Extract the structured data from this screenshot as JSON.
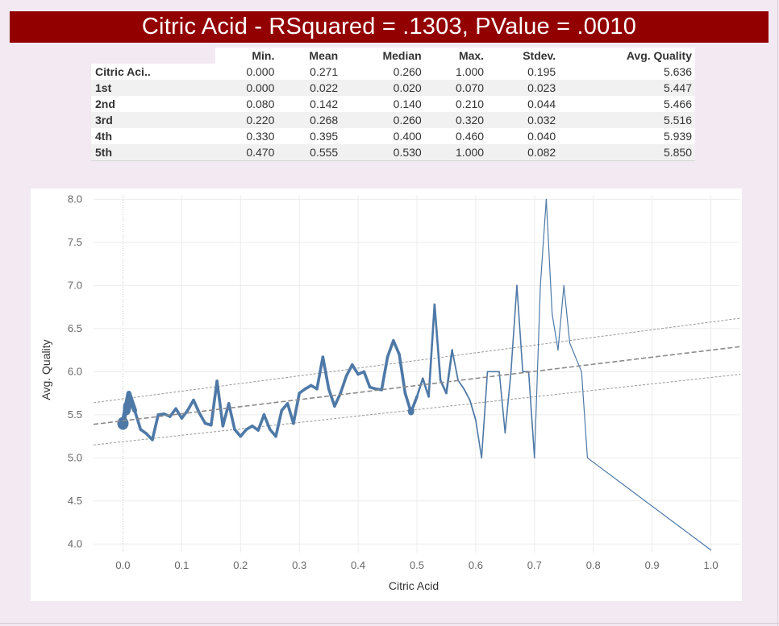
{
  "title": "Citric Acid - RSquared = .1303, PValue = .0010",
  "stats_table": {
    "columns": [
      "Min.",
      "Mean",
      "Median",
      "Max.",
      "Stdev.",
      "Avg. Quality"
    ],
    "rows": [
      {
        "label": "Citric Aci..",
        "values": [
          "0.000",
          "0.271",
          "0.260",
          "1.000",
          "0.195",
          "5.636"
        ]
      },
      {
        "label": "1st",
        "values": [
          "0.000",
          "0.022",
          "0.020",
          "0.070",
          "0.023",
          "5.447"
        ]
      },
      {
        "label": "2nd",
        "values": [
          "0.080",
          "0.142",
          "0.140",
          "0.210",
          "0.044",
          "5.466"
        ]
      },
      {
        "label": "3rd",
        "values": [
          "0.220",
          "0.268",
          "0.260",
          "0.320",
          "0.032",
          "5.516"
        ]
      },
      {
        "label": "4th",
        "values": [
          "0.330",
          "0.395",
          "0.400",
          "0.460",
          "0.040",
          "5.939"
        ]
      },
      {
        "label": "5th",
        "values": [
          "0.470",
          "0.555",
          "0.530",
          "1.000",
          "0.082",
          "5.850"
        ]
      }
    ]
  },
  "chart_data": {
    "type": "line",
    "title": "",
    "xlabel": "Citric Acid",
    "ylabel": "Avg. Quality",
    "xlim": [
      -0.05,
      1.05
    ],
    "ylim": [
      3.9,
      8.05
    ],
    "x_ticks": [
      "0.0",
      "0.1",
      "0.2",
      "0.3",
      "0.4",
      "0.5",
      "0.6",
      "0.7",
      "0.8",
      "0.9",
      "1.0"
    ],
    "y_ticks": [
      "4.0",
      "4.5",
      "5.0",
      "5.5",
      "6.0",
      "6.5",
      "7.0",
      "7.5",
      "8.0"
    ],
    "grid": true,
    "line_color": "#4e79a7",
    "trend_color": "#8a8a8a",
    "series": [
      {
        "x": [
          0.0,
          0.01,
          0.02,
          0.03,
          0.04,
          0.05,
          0.06,
          0.07,
          0.08,
          0.09,
          0.1,
          0.11,
          0.12,
          0.13,
          0.14,
          0.15,
          0.16,
          0.17,
          0.18,
          0.19,
          0.2,
          0.21,
          0.22,
          0.23,
          0.24,
          0.25,
          0.26,
          0.27,
          0.28,
          0.29,
          0.3,
          0.31,
          0.32,
          0.33,
          0.34,
          0.35,
          0.36,
          0.37,
          0.38,
          0.39,
          0.4,
          0.41,
          0.42,
          0.43,
          0.44,
          0.45,
          0.46,
          0.47,
          0.48,
          0.49,
          0.5,
          0.51,
          0.52,
          0.53,
          0.54,
          0.55,
          0.56,
          0.57,
          0.58,
          0.59,
          0.6,
          0.61,
          0.62,
          0.63,
          0.64,
          0.65,
          0.66,
          0.67,
          0.68,
          0.69,
          0.7,
          0.71,
          0.72,
          0.73,
          0.74,
          0.75,
          0.76,
          0.78,
          0.79,
          1.0
        ],
        "y": [
          5.4,
          5.75,
          5.55,
          5.33,
          5.28,
          5.21,
          5.5,
          5.51,
          5.48,
          5.57,
          5.46,
          5.55,
          5.67,
          5.52,
          5.4,
          5.38,
          5.89,
          5.37,
          5.63,
          5.33,
          5.25,
          5.33,
          5.37,
          5.32,
          5.5,
          5.33,
          5.25,
          5.55,
          5.63,
          5.4,
          5.75,
          5.8,
          5.84,
          5.8,
          6.17,
          5.8,
          5.6,
          5.75,
          5.95,
          6.08,
          5.97,
          6.0,
          5.82,
          5.8,
          5.79,
          6.17,
          6.36,
          6.2,
          5.75,
          5.53,
          5.71,
          5.92,
          5.71,
          6.78,
          5.9,
          5.75,
          6.25,
          5.9,
          5.8,
          5.67,
          5.44,
          5.0,
          6.0,
          6.0,
          6.0,
          5.29,
          6.0,
          7.0,
          6.0,
          6.0,
          5.0,
          7.0,
          8.0,
          6.67,
          6.25,
          7.0,
          6.33,
          6.0,
          5.0,
          3.93
        ]
      }
    ],
    "trend_line": {
      "intercept": 5.43,
      "slope": 0.82
    },
    "confidence_band": {
      "upper": [
        [
          -0.05,
          5.64
        ],
        [
          1.05,
          6.62
        ]
      ],
      "lower": [
        [
          -0.05,
          5.15
        ],
        [
          1.05,
          5.97
        ]
      ]
    }
  }
}
